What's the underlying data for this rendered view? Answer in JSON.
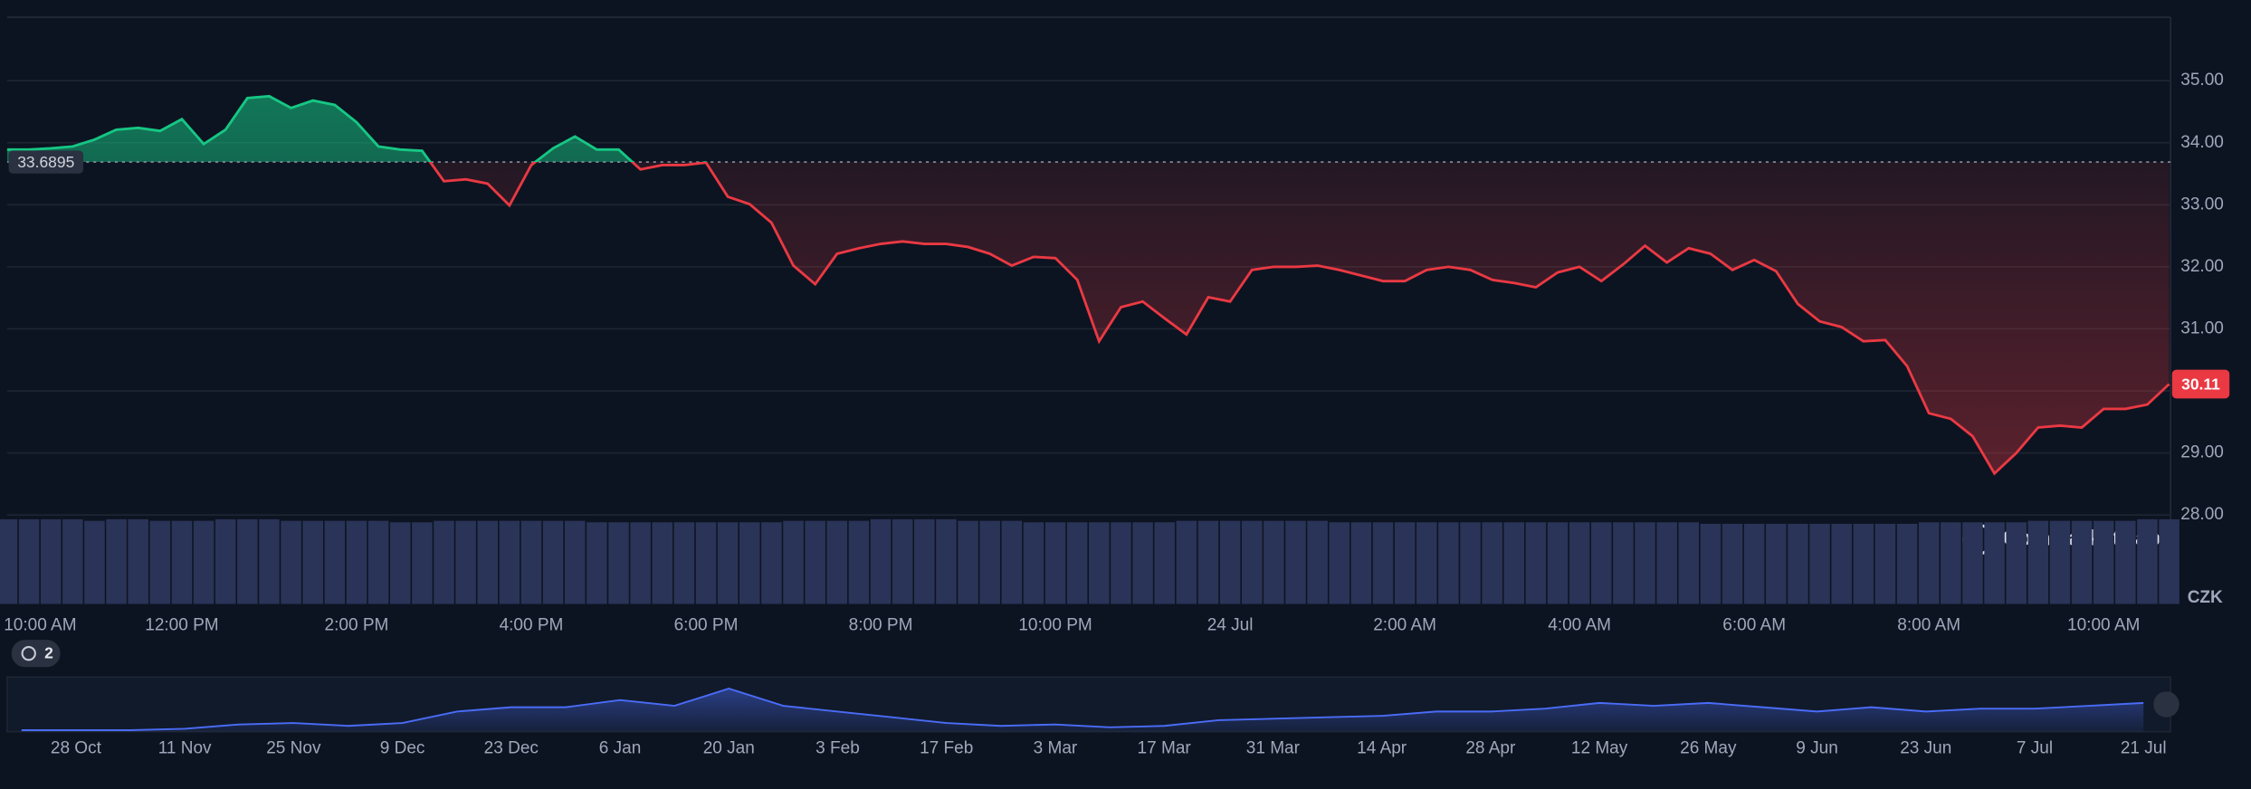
{
  "chart_data": {
    "type": "line",
    "categories": [
      "10:00 AM",
      null,
      null,
      null,
      null,
      null,
      null,
      null,
      "12:00 PM",
      null,
      null,
      null,
      null,
      null,
      null,
      null,
      "2:00 PM",
      null,
      null,
      null,
      null,
      null,
      null,
      null,
      "4:00 PM",
      null,
      null,
      null,
      null,
      null,
      null,
      null,
      "6:00 PM",
      null,
      null,
      null,
      null,
      null,
      null,
      null,
      "8:00 PM",
      null,
      null,
      null,
      null,
      null,
      null,
      null,
      "10:00 PM",
      null,
      null,
      null,
      null,
      null,
      null,
      null,
      "24 Jul",
      null,
      null,
      null,
      null,
      null,
      null,
      null,
      "2:00 AM",
      null,
      null,
      null,
      null,
      null,
      null,
      null,
      "4:00 AM",
      null,
      null,
      null,
      null,
      null,
      null,
      null,
      "6:00 AM",
      null,
      null,
      null,
      null,
      null,
      null,
      null,
      "8:00 AM",
      null,
      null,
      null,
      null,
      null,
      null,
      null,
      "10:00 AM",
      null,
      null,
      null
    ],
    "values": [
      33.89,
      33.89,
      33.91,
      33.94,
      34.05,
      34.21,
      34.24,
      34.19,
      34.38,
      33.98,
      34.21,
      34.72,
      34.75,
      34.56,
      34.68,
      34.61,
      34.33,
      33.94,
      33.89,
      33.87,
      33.38,
      33.41,
      33.34,
      32.99,
      33.64,
      33.91,
      34.1,
      33.89,
      33.89,
      33.57,
      33.64,
      33.64,
      33.68,
      33.13,
      33.01,
      32.71,
      32.02,
      31.72,
      32.21,
      32.3,
      32.37,
      32.41,
      32.37,
      32.37,
      32.32,
      32.21,
      32.02,
      32.16,
      32.14,
      31.79,
      30.8,
      31.35,
      31.44,
      31.17,
      30.91,
      31.51,
      31.44,
      31.95,
      32.0,
      32.0,
      32.02,
      31.95,
      31.86,
      31.77,
      31.77,
      31.95,
      32.0,
      31.95,
      31.79,
      31.74,
      31.67,
      31.91,
      32.0,
      31.77,
      32.04,
      32.34,
      32.07,
      32.3,
      32.21,
      31.95,
      32.11,
      31.93,
      31.4,
      31.12,
      31.03,
      30.8,
      30.82,
      30.4,
      29.64,
      29.55,
      29.27,
      28.67,
      29.0,
      29.41,
      29.44,
      29.41,
      29.71,
      29.71,
      29.78,
      30.11
    ],
    "up_color": "#16c784",
    "down_color": "#ea3943",
    "baseline": 33.6895,
    "last_price": 30.11,
    "currency": "CZK",
    "ylim": [
      28,
      36
    ],
    "yticks": [
      {
        "value": 28,
        "label": "28.00"
      },
      {
        "value": 29,
        "label": "29.00"
      },
      {
        "value": 30,
        "label": "30.00"
      },
      {
        "value": 31,
        "label": "31.00"
      },
      {
        "value": 32,
        "label": "32.00"
      },
      {
        "value": 33,
        "label": "33.00"
      },
      {
        "value": 34,
        "label": "34.00"
      },
      {
        "value": 35,
        "label": "35.00"
      }
    ],
    "grid": true,
    "volume": [
      56,
      56,
      56,
      56,
      55,
      56,
      56,
      55,
      55,
      55,
      56,
      56,
      56,
      55,
      55,
      55,
      55,
      55,
      54,
      54,
      55,
      55,
      55,
      55,
      55,
      55,
      55,
      54,
      54,
      54,
      54,
      54,
      54,
      54,
      54,
      54,
      55,
      55,
      55,
      55,
      56,
      56,
      56,
      56,
      55,
      55,
      55,
      54,
      54,
      54,
      54,
      54,
      54,
      54,
      55,
      55,
      55,
      55,
      55,
      55,
      55,
      54,
      54,
      54,
      54,
      54,
      54,
      54,
      54,
      54,
      54,
      54,
      54,
      54,
      54,
      54,
      54,
      54,
      53,
      53,
      53,
      53,
      53,
      53,
      53,
      53,
      53,
      53,
      54,
      54,
      54,
      54,
      54,
      55,
      55,
      55,
      55,
      55,
      56,
      56
    ],
    "volume_color": "#2a3458",
    "navigator": {
      "categories": [
        null,
        "28 Oct",
        null,
        "11 Nov",
        null,
        "25 Nov",
        null,
        "9 Dec",
        null,
        "23 Dec",
        null,
        "6 Jan",
        null,
        "20 Jan",
        null,
        "3 Feb",
        null,
        "17 Feb",
        null,
        "3 Mar",
        null,
        "17 Mar",
        null,
        "31 Mar",
        null,
        "14 Apr",
        null,
        "28 Apr",
        null,
        "12 May",
        null,
        "26 May",
        null,
        "9 Jun",
        null,
        "23 Jun",
        null,
        "7 Jul",
        null,
        "21 Jul"
      ],
      "values": [
        1,
        1,
        1,
        2,
        5,
        6,
        4,
        6,
        14,
        17,
        17,
        22,
        18,
        30,
        18,
        14,
        10,
        6,
        4,
        5,
        3,
        4,
        8,
        9,
        10,
        11,
        14,
        14,
        16,
        20,
        18,
        20,
        17,
        14,
        17,
        14,
        16,
        16,
        18,
        20
      ],
      "color": "#4a6cf7"
    },
    "watermark": "CoinMarketCap",
    "badge": "2"
  }
}
